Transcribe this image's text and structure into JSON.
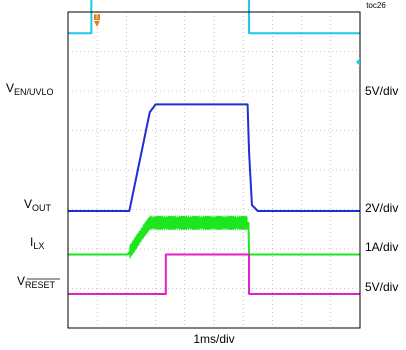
{
  "chart_data": {
    "type": "line",
    "title": "",
    "chart_id": "toc26",
    "xlabel": "1ms/div",
    "grid": true,
    "x_divisions": 10,
    "y_divisions": 8,
    "series": [
      {
        "name_main": "V",
        "name_sub": "EN/UVLO",
        "scale": "5V/div",
        "color": "#1ec8e6",
        "points": [
          [
            0,
            4.5
          ],
          [
            0.8,
            4.5
          ],
          [
            0.8,
            6.2
          ],
          [
            6.2,
            6.2
          ],
          [
            6.2,
            4.5
          ],
          [
            10,
            4.5
          ]
        ]
      },
      {
        "name_main": "V",
        "name_sub": "OUT",
        "scale": "2V/div",
        "color": "#1f2fd6",
        "points": [
          [
            0,
            0
          ],
          [
            2.1,
            0
          ],
          [
            2.8,
            2.5
          ],
          [
            3.0,
            2.7
          ],
          [
            6.15,
            2.7
          ],
          [
            6.2,
            1.5
          ],
          [
            6.3,
            0.15
          ],
          [
            6.5,
            0
          ],
          [
            10,
            0
          ]
        ]
      },
      {
        "name_main": "I",
        "name_sub": "LX",
        "scale": "1A/div",
        "color": "#1ee61e",
        "band": true,
        "points": [
          [
            0,
            -1.1
          ],
          [
            2.05,
            -1.1
          ],
          [
            2.15,
            -1.0
          ],
          [
            2.6,
            -0.5
          ],
          [
            2.8,
            -0.3
          ],
          [
            6.18,
            -0.3
          ],
          [
            6.2,
            -1.1
          ],
          [
            10,
            -1.1
          ]
        ],
        "ripple_start": 2.1,
        "ripple_end": 6.15,
        "ripple_amplitude": 0.2
      },
      {
        "name_main": "V",
        "name_sub": "RESET",
        "scale": "5V/div",
        "color": "#e61ec8",
        "points": [
          [
            0,
            -2.1
          ],
          [
            3.35,
            -2.1
          ],
          [
            3.35,
            -1.1
          ],
          [
            6.2,
            -1.1
          ],
          [
            6.2,
            -2.1
          ],
          [
            10,
            -2.1
          ]
        ]
      }
    ]
  },
  "markers": {
    "trigger_color": "#e67e22",
    "trigger_label": "T",
    "level_color": "#1ec8e6"
  }
}
